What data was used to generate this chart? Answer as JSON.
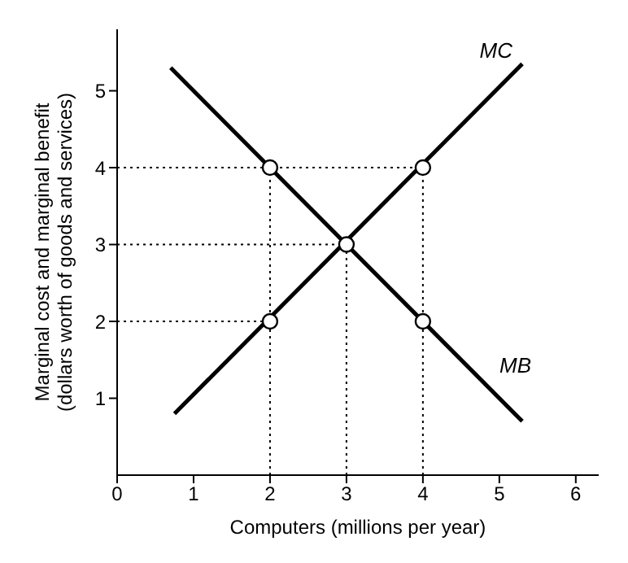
{
  "chart_data": {
    "type": "line",
    "xlabel": "Computers (millions per year)",
    "ylabel": "Marginal cost and marginal benefit\n(dollars worth of goods and services)",
    "xlim": [
      0,
      6.3
    ],
    "ylim": [
      0,
      5.8
    ],
    "xticks": [
      0,
      1,
      2,
      3,
      4,
      5,
      6
    ],
    "yticks": [
      1,
      2,
      3,
      4,
      5
    ],
    "grid": false,
    "marker": "none",
    "line_style": "solid",
    "series": [
      {
        "name": "MC",
        "color": "#000000",
        "x": [
          0.75,
          5.3
        ],
        "values": [
          0.8,
          5.35
        ]
      },
      {
        "name": "MB",
        "color": "#000000",
        "x": [
          0.7,
          5.3
        ],
        "values": [
          5.3,
          0.7
        ]
      },
      {
        "color": "#000000",
        "line_style": "dotted",
        "x": [
          0,
          4
        ],
        "values": [
          4,
          4
        ]
      },
      {
        "color": "#000000",
        "line_style": "dotted",
        "x": [
          0,
          3
        ],
        "values": [
          3,
          3
        ]
      },
      {
        "color": "#000000",
        "line_style": "dotted",
        "x": [
          0,
          2
        ],
        "values": [
          2,
          2
        ]
      },
      {
        "color": "#000000",
        "line_style": "dotted",
        "x": [
          2,
          2
        ],
        "values": [
          0,
          4
        ]
      },
      {
        "color": "#000000",
        "line_style": "dotted",
        "x": [
          3,
          3
        ],
        "values": [
          0,
          3
        ]
      },
      {
        "color": "#000000",
        "line_style": "dotted",
        "x": [
          4,
          4
        ],
        "values": [
          0,
          4
        ]
      },
      {
        "type": "scatter",
        "marker": "circle",
        "color": "#ffffff",
        "x": [
          2,
          4,
          3,
          2,
          4
        ],
        "values": [
          4,
          4,
          3,
          2,
          2
        ]
      }
    ]
  }
}
